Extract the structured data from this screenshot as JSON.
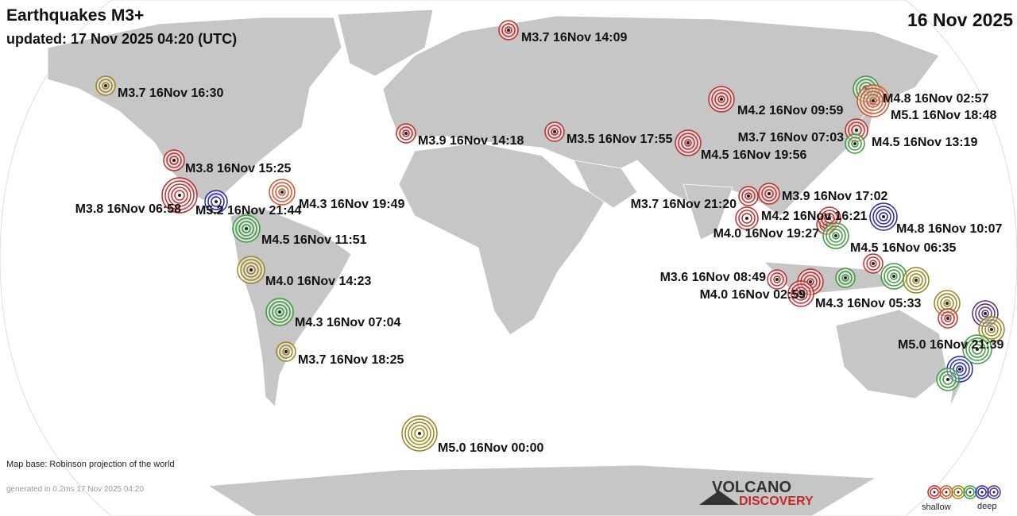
{
  "header": {
    "title": "Earthquakes M3+",
    "updated": "updated: 17 Nov 2025 04:20 (UTC)",
    "date": "16 Nov 2025"
  },
  "quakes": [
    {
      "label": "M3.7 16Nov 14:09",
      "color": "#c42a2a"
    },
    {
      "label": "M3.7 16Nov 16:30",
      "color": "#9a8418"
    },
    {
      "label": "M3.9 16Nov 14:18",
      "color": "#c42a2a"
    },
    {
      "label": "M3.5 16Nov 17:55",
      "color": "#c42a2a"
    },
    {
      "label": "M4.2 16Nov 09:59",
      "color": "#c42a2a"
    },
    {
      "label": "M4.8 16Nov 02:57",
      "color": "#3a9a3a"
    },
    {
      "label": "M5.1 16Nov 18:48",
      "color": "#d0542a"
    },
    {
      "label": "M3.7 16Nov 07:03",
      "color": "#c42a2a"
    },
    {
      "label": "M4.5 16Nov 13:19",
      "color": "#3a9a3a"
    },
    {
      "label": "M4.5 16Nov 19:56",
      "color": "#c42a2a"
    },
    {
      "label": "M3.8 16Nov 15:25",
      "color": "#c42a2a"
    },
    {
      "label": "M3.8 16Nov 06:58",
      "color": "#c42a2a"
    },
    {
      "label": "M5.2 16Nov 21:44",
      "color": "#2424b0"
    },
    {
      "label": "M4.3 16Nov 19:49",
      "color": "#d0542a"
    },
    {
      "label": "M4.5 16Nov 11:51",
      "color": "#3a9a3a"
    },
    {
      "label": "M4.0 16Nov 14:23",
      "color": "#9a8418"
    },
    {
      "label": "M4.3 16Nov 07:04",
      "color": "#3a9a3a"
    },
    {
      "label": "M3.7 16Nov 18:25",
      "color": "#9a8418"
    },
    {
      "label": "M5.0 16Nov 00:00",
      "color": "#9a8418"
    },
    {
      "label": "M3.7 16Nov 21:20",
      "color": "#c42a2a"
    },
    {
      "label": "M3.9 16Nov 17:02",
      "color": "#c42a2a"
    },
    {
      "label": "M4.2 16Nov 16:21",
      "color": "#c42a2a"
    },
    {
      "label": "M4.8 16Nov 10:07",
      "color": "#2424b0"
    },
    {
      "label": "M4.0 16Nov 19:27",
      "color": "#c42a2a"
    },
    {
      "label": "M4.5 16Nov 06:35",
      "color": "#3a9a3a"
    },
    {
      "label": "M3.6 16Nov 08:49",
      "color": "#c42a2a"
    },
    {
      "label": "M4.0 16Nov 02:59",
      "color": "#c42a2a"
    },
    {
      "label": "M4.3 16Nov 05:33",
      "color": "#3a9a3a"
    },
    {
      "label": "M5.0 16Nov 21:39",
      "color": "#3a9a3a"
    }
  ],
  "footer": {
    "map_base": "Map base: Robinson projection of the world",
    "generated": "generated in 0.2ms 17 Nov 2025 04:20",
    "logo_top": "VOLCANO",
    "logo_bottom": "DISCOVERY",
    "legend_shallow": "shallow",
    "legend_deep": "deep"
  }
}
